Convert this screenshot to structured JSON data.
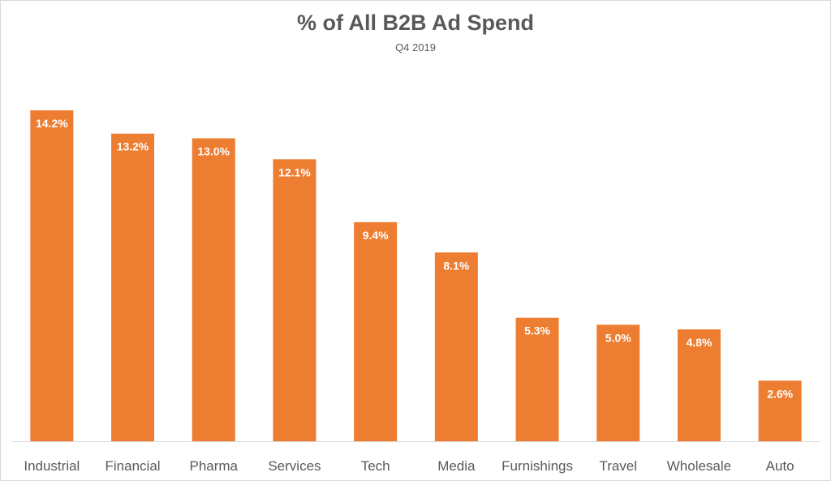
{
  "chart_data": {
    "type": "bar",
    "title": "% of All B2B Ad Spend",
    "subtitle": "Q4 2019",
    "categories": [
      "Industrial",
      "Financial",
      "Pharma",
      "Services",
      "Tech",
      "Media",
      "Furnishings",
      "Travel",
      "Wholesale",
      "Auto"
    ],
    "values": [
      14.2,
      13.2,
      13.0,
      12.1,
      9.4,
      8.1,
      5.3,
      5.0,
      4.8,
      2.6
    ],
    "data_labels": [
      "14.2%",
      "13.2%",
      "13.0%",
      "12.1%",
      "9.4%",
      "8.1%",
      "5.3%",
      "5.0%",
      "4.8%",
      "2.6%"
    ],
    "xlabel": "",
    "ylabel": "",
    "ylim": [
      0,
      14.2
    ],
    "grid": false,
    "bar_color": "#ED7D31",
    "text_color": "#595959"
  }
}
